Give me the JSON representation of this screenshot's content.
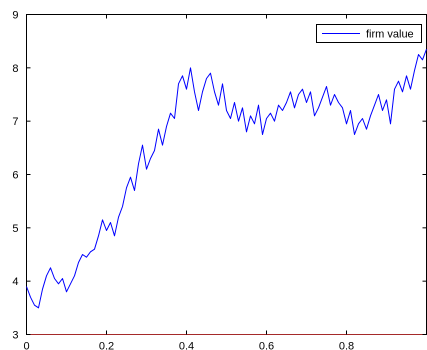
{
  "chart_data": {
    "type": "line",
    "title": "",
    "xlabel": "",
    "ylabel": "",
    "xlim": [
      0,
      1
    ],
    "ylim": [
      3,
      9
    ],
    "xticks": [
      "0",
      "0.2",
      "0.4",
      "0.6",
      "0.8"
    ],
    "yticks": [
      "3",
      "4",
      "5",
      "6",
      "7",
      "8",
      "9"
    ],
    "grid": false,
    "legend_position": "top-right",
    "series": [
      {
        "name": "firm value",
        "color": "#0000ff",
        "x": [
          0.0,
          0.01,
          0.02,
          0.03,
          0.04,
          0.05,
          0.06,
          0.07,
          0.08,
          0.09,
          0.1,
          0.11,
          0.12,
          0.13,
          0.14,
          0.15,
          0.16,
          0.17,
          0.18,
          0.19,
          0.2,
          0.21,
          0.22,
          0.23,
          0.24,
          0.25,
          0.26,
          0.27,
          0.28,
          0.29,
          0.3,
          0.31,
          0.32,
          0.33,
          0.34,
          0.35,
          0.36,
          0.37,
          0.38,
          0.39,
          0.4,
          0.41,
          0.42,
          0.43,
          0.44,
          0.45,
          0.46,
          0.47,
          0.48,
          0.49,
          0.5,
          0.51,
          0.52,
          0.53,
          0.54,
          0.55,
          0.56,
          0.57,
          0.58,
          0.59,
          0.6,
          0.61,
          0.62,
          0.63,
          0.64,
          0.65,
          0.66,
          0.67,
          0.68,
          0.69,
          0.7,
          0.71,
          0.72,
          0.73,
          0.74,
          0.75,
          0.76,
          0.77,
          0.78,
          0.79,
          0.8,
          0.81,
          0.82,
          0.83,
          0.84,
          0.85,
          0.86,
          0.87,
          0.88,
          0.89,
          0.9,
          0.91,
          0.92,
          0.93,
          0.94,
          0.95,
          0.96,
          0.97,
          0.98,
          0.99,
          1.0
        ],
        "values": [
          3.9,
          3.7,
          3.55,
          3.5,
          3.85,
          4.1,
          4.25,
          4.05,
          3.95,
          4.05,
          3.8,
          3.95,
          4.1,
          4.35,
          4.5,
          4.45,
          4.55,
          4.6,
          4.85,
          5.15,
          4.95,
          5.1,
          4.85,
          5.2,
          5.4,
          5.75,
          5.95,
          5.7,
          6.2,
          6.55,
          6.1,
          6.3,
          6.45,
          6.85,
          6.55,
          6.9,
          7.15,
          7.05,
          7.7,
          7.85,
          7.6,
          8.0,
          7.55,
          7.2,
          7.55,
          7.8,
          7.9,
          7.55,
          7.3,
          7.7,
          7.2,
          7.05,
          7.35,
          7.0,
          7.25,
          6.8,
          7.1,
          6.95,
          7.3,
          6.75,
          7.05,
          7.15,
          7.0,
          7.3,
          7.2,
          7.35,
          7.55,
          7.25,
          7.5,
          7.6,
          7.35,
          7.55,
          7.1,
          7.25,
          7.45,
          7.65,
          7.3,
          7.5,
          7.35,
          7.25,
          6.95,
          7.2,
          6.75,
          6.95,
          7.05,
          6.85,
          7.1,
          7.3,
          7.5,
          7.2,
          7.4,
          6.95,
          7.6,
          7.75,
          7.55,
          7.85,
          7.6,
          7.95,
          8.25,
          8.15,
          8.35
        ]
      }
    ],
    "reference_lines": [
      {
        "y": 3,
        "color": "#a52a2a"
      }
    ]
  }
}
